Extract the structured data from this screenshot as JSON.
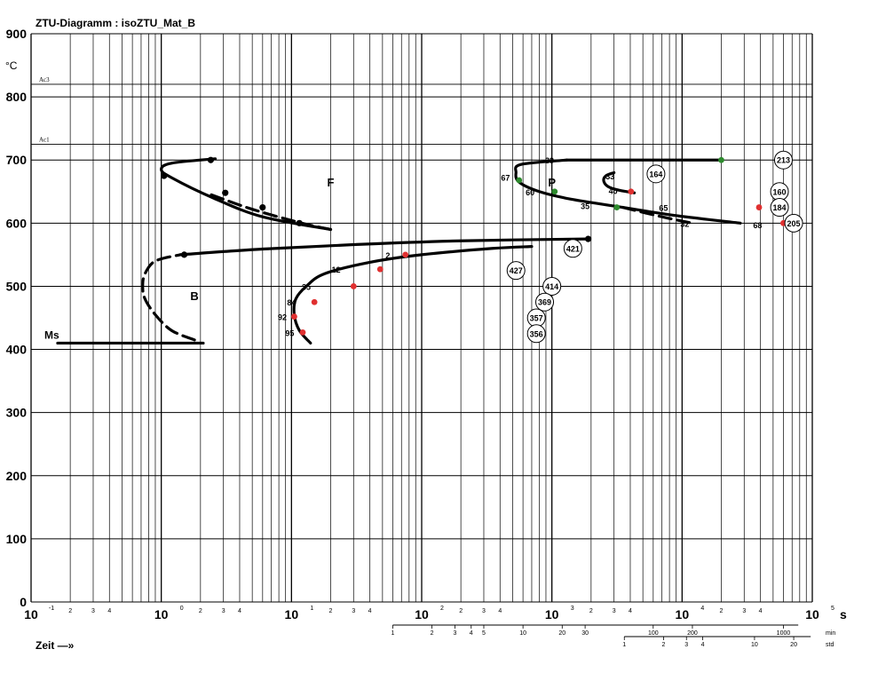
{
  "title": "ZTU-Diagramm :  isoZTU_Mat_B",
  "time_label": "Zeit  —»",
  "chart_data": {
    "type": "line",
    "title": "ZTU-Diagramm :  isoZTU_Mat_B",
    "xlabel": "Zeit",
    "x_unit": "s",
    "ylabel": "°C",
    "x_scale": "log",
    "xlim": [
      0.1,
      100000
    ],
    "ylim": [
      0,
      900
    ],
    "grid": true,
    "y_ticks": [
      "0",
      "100",
      "200",
      "300",
      "400",
      "500",
      "600",
      "700",
      "800",
      "900"
    ],
    "x_tick_base": "10",
    "x_tick_exponents": [
      "-1",
      "0",
      "1",
      "2",
      "3",
      "4",
      "5"
    ],
    "x_minor_tick_labels": [
      "2",
      "3",
      "4"
    ],
    "min_axis": {
      "unit": "min",
      "labels": [
        "1",
        "2",
        "3",
        "4",
        "5",
        "10",
        "20",
        "30",
        "100",
        "200",
        "1000"
      ],
      "values_min": [
        1,
        2,
        3,
        4,
        5,
        10,
        20,
        30,
        100,
        200,
        1000
      ]
    },
    "std_axis": {
      "unit": "std",
      "labels": [
        "1",
        "2",
        "3",
        "4",
        "10",
        "20"
      ],
      "values_h": [
        1,
        2,
        3,
        4,
        10,
        20
      ]
    },
    "reference_lines": [
      {
        "label": "Ac3",
        "value": 820
      },
      {
        "label": "Ac1",
        "value": 725
      },
      {
        "label": "Ms",
        "value": 410
      }
    ],
    "regions": [
      {
        "label": "F",
        "x": 20,
        "y": 665
      },
      {
        "label": "P",
        "x": 1000,
        "y": 665
      },
      {
        "label": "B",
        "x": 1.8,
        "y": 485
      }
    ],
    "series": [
      {
        "style": "solid",
        "points": [
          [
            2.6,
            702
          ],
          [
            1.2,
            695
          ],
          [
            1.0,
            685
          ],
          [
            1.2,
            672
          ],
          [
            2.5,
            640
          ],
          [
            6,
            610
          ],
          [
            20,
            590
          ]
        ]
      },
      {
        "style": "dashed",
        "points": [
          [
            20,
            590
          ],
          [
            12,
            600
          ],
          [
            5,
            622
          ],
          [
            2.2,
            648
          ]
        ]
      },
      {
        "style": "solid",
        "points": [
          [
            0.16,
            410
          ],
          [
            2.1,
            410
          ]
        ]
      },
      {
        "style": "dashed",
        "points": [
          [
            1.8,
            415
          ],
          [
            1.2,
            430
          ],
          [
            0.9,
            455
          ],
          [
            0.75,
            480
          ],
          [
            0.72,
            500
          ],
          [
            0.75,
            520
          ],
          [
            0.9,
            540
          ],
          [
            1.4,
            550
          ]
        ]
      },
      {
        "style": "solid",
        "points": [
          [
            1.4,
            550
          ],
          [
            6,
            559
          ],
          [
            30,
            566
          ],
          [
            200,
            572
          ],
          [
            1900,
            575
          ]
        ]
      },
      {
        "style": "solid",
        "points": [
          [
            14,
            410
          ],
          [
            11.5,
            430
          ],
          [
            10.5,
            455
          ],
          [
            10.8,
            480
          ],
          [
            13,
            500
          ],
          [
            18,
            520
          ],
          [
            40,
            538
          ],
          [
            100,
            550
          ],
          [
            350,
            560
          ],
          [
            700,
            563
          ]
        ]
      },
      {
        "style": "solid",
        "points": [
          [
            1300,
            700
          ],
          [
            580,
            693
          ],
          [
            530,
            680
          ],
          [
            560,
            665
          ],
          [
            800,
            650
          ],
          [
            1400,
            638
          ],
          [
            3500,
            625
          ],
          [
            9000,
            612
          ],
          [
            28000,
            600
          ]
        ]
      },
      {
        "style": "dashed",
        "points": [
          [
            3500,
            625
          ],
          [
            7000,
            610
          ],
          [
            12000,
            600
          ]
        ]
      },
      {
        "style": "solid",
        "points": [
          [
            1300,
            700
          ],
          [
            3200,
            700
          ],
          [
            20000,
            700
          ]
        ]
      },
      {
        "style": "solid",
        "points": [
          [
            3000,
            680
          ],
          [
            2600,
            675
          ],
          [
            2500,
            667
          ],
          [
            2700,
            658
          ],
          [
            3300,
            652
          ],
          [
            4300,
            648
          ]
        ]
      }
    ],
    "markers": [
      {
        "x": 2.4,
        "y": 700,
        "color": "#000000"
      },
      {
        "x": 1.05,
        "y": 675,
        "color": "#000000"
      },
      {
        "x": 3.1,
        "y": 648,
        "color": "#000000"
      },
      {
        "x": 6,
        "y": 625,
        "color": "#000000"
      },
      {
        "x": 11.5,
        "y": 600,
        "color": "#000000"
      },
      {
        "x": 1.5,
        "y": 550,
        "color": "#000000"
      },
      {
        "x": 1900,
        "y": 575,
        "color": "#000000"
      },
      {
        "x": 1.05,
        "y": 675,
        "color": "#000000"
      },
      {
        "x": 75,
        "y": 550,
        "color": "#e03030"
      },
      {
        "x": 48,
        "y": 527,
        "color": "#e03030"
      },
      {
        "x": 30,
        "y": 500,
        "color": "#e03030"
      },
      {
        "x": 15,
        "y": 475,
        "color": "#e03030"
      },
      {
        "x": 10.5,
        "y": 452,
        "color": "#e03030"
      },
      {
        "x": 12.2,
        "y": 427,
        "color": "#e03030"
      },
      {
        "x": 20000,
        "y": 700,
        "color": "#2e8b2e"
      },
      {
        "x": 560,
        "y": 668,
        "color": "#2e8b2e"
      },
      {
        "x": 1050,
        "y": 650,
        "color": "#2e8b2e"
      },
      {
        "x": 3150,
        "y": 625,
        "color": "#2e8b2e"
      },
      {
        "x": 4050,
        "y": 650,
        "color": "#e03030"
      },
      {
        "x": 39000,
        "y": 625,
        "color": "#e03030"
      },
      {
        "x": 60000,
        "y": 600,
        "color": "#e03030"
      }
    ],
    "point_labels": [
      {
        "text": "2",
        "x": 55,
        "y": 550
      },
      {
        "text": "12",
        "x": 22,
        "y": 527
      },
      {
        "text": "35",
        "x": 13,
        "y": 500
      },
      {
        "text": "84",
        "x": 10,
        "y": 475
      },
      {
        "text": "92",
        "x": 8.5,
        "y": 452
      },
      {
        "text": "95",
        "x": 9.7,
        "y": 427
      },
      {
        "text": "39",
        "x": 960,
        "y": 700
      },
      {
        "text": "67",
        "x": 440,
        "y": 673
      },
      {
        "text": "60",
        "x": 680,
        "y": 650
      },
      {
        "text": "35",
        "x": 1800,
        "y": 628
      },
      {
        "text": "33",
        "x": 2800,
        "y": 675
      },
      {
        "text": "40",
        "x": 2950,
        "y": 652
      },
      {
        "text": "65",
        "x": 7200,
        "y": 625
      },
      {
        "text": "32",
        "x": 10500,
        "y": 600
      },
      {
        "text": "68",
        "x": 38000,
        "y": 598
      }
    ],
    "hardness_labels": [
      {
        "text": "213",
        "x": 60000,
        "y": 700
      },
      {
        "text": "164",
        "x": 6300,
        "y": 678
      },
      {
        "text": "160",
        "x": 56000,
        "y": 650
      },
      {
        "text": "184",
        "x": 56000,
        "y": 625
      },
      {
        "text": "205",
        "x": 72000,
        "y": 600
      },
      {
        "text": "421",
        "x": 1450,
        "y": 560
      },
      {
        "text": "427",
        "x": 530,
        "y": 525
      },
      {
        "text": "414",
        "x": 1000,
        "y": 500
      },
      {
        "text": "369",
        "x": 880,
        "y": 475
      },
      {
        "text": "357",
        "x": 760,
        "y": 450
      },
      {
        "text": "356",
        "x": 760,
        "y": 425
      }
    ]
  }
}
